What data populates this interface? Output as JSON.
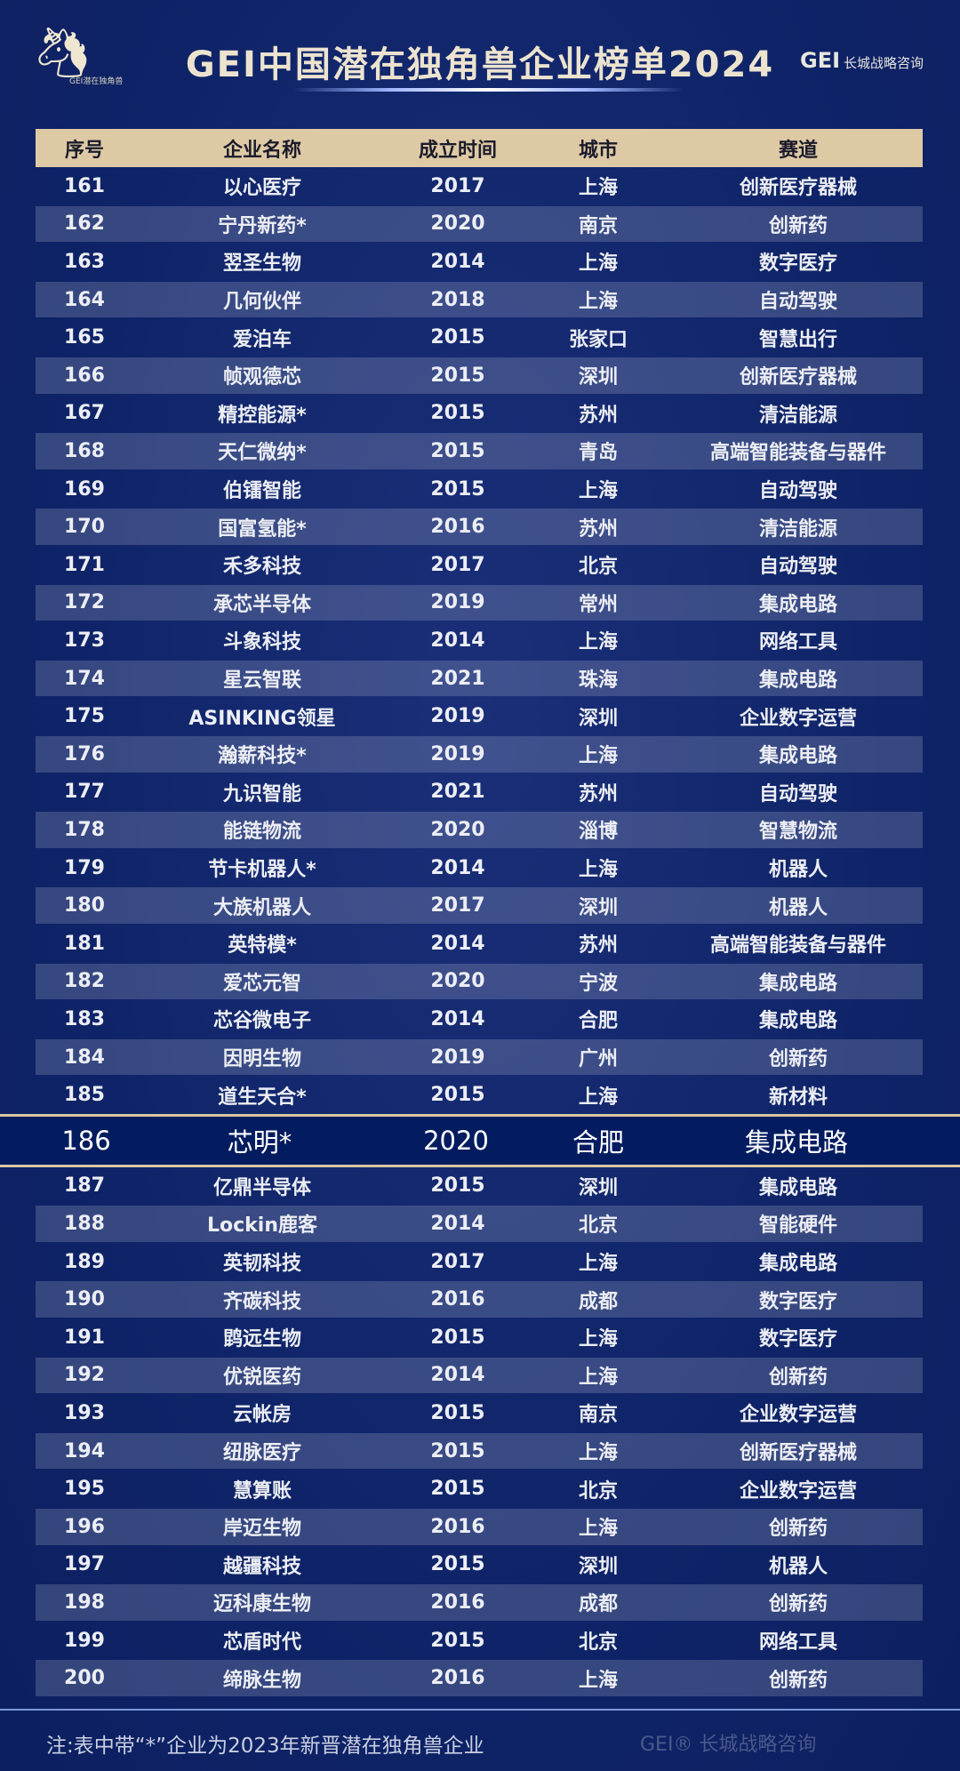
{
  "header": {
    "title": "GEI中国潜在独角兽企业榜单2024",
    "logo_left_caption": "GEI潜在独角兽",
    "logo_right_brand": "GEI",
    "logo_right_name": "长城战略咨询"
  },
  "watermark": "GEI® 长城战略咨询",
  "table": {
    "columns": [
      "序号",
      "企业名称",
      "成立时间",
      "城市",
      "赛道"
    ],
    "rows": [
      [
        "161",
        "以心医疗",
        "2017",
        "上海",
        "创新医疗器械"
      ],
      [
        "162",
        "宁丹新药*",
        "2020",
        "南京",
        "创新药"
      ],
      [
        "163",
        "翌圣生物",
        "2014",
        "上海",
        "数字医疗"
      ],
      [
        "164",
        "几何伙伴",
        "2018",
        "上海",
        "自动驾驶"
      ],
      [
        "165",
        "爱泊车",
        "2015",
        "张家口",
        "智慧出行"
      ],
      [
        "166",
        "帧观德芯",
        "2015",
        "深圳",
        "创新医疗器械"
      ],
      [
        "167",
        "精控能源*",
        "2015",
        "苏州",
        "清洁能源"
      ],
      [
        "168",
        "天仁微纳*",
        "2015",
        "青岛",
        "高端智能装备与器件"
      ],
      [
        "169",
        "伯镭智能",
        "2015",
        "上海",
        "自动驾驶"
      ],
      [
        "170",
        "国富氢能*",
        "2016",
        "苏州",
        "清洁能源"
      ],
      [
        "171",
        "禾多科技",
        "2017",
        "北京",
        "自动驾驶"
      ],
      [
        "172",
        "承芯半导体",
        "2019",
        "常州",
        "集成电路"
      ],
      [
        "173",
        "斗象科技",
        "2014",
        "上海",
        "网络工具"
      ],
      [
        "174",
        "星云智联",
        "2021",
        "珠海",
        "集成电路"
      ],
      [
        "175",
        "ASINKING领星",
        "2019",
        "深圳",
        "企业数字运营"
      ],
      [
        "176",
        "瀚薪科技*",
        "2019",
        "上海",
        "集成电路"
      ],
      [
        "177",
        "九识智能",
        "2021",
        "苏州",
        "自动驾驶"
      ],
      [
        "178",
        "能链物流",
        "2020",
        "淄博",
        "智慧物流"
      ],
      [
        "179",
        "节卡机器人*",
        "2014",
        "上海",
        "机器人"
      ],
      [
        "180",
        "大族机器人",
        "2017",
        "深圳",
        "机器人"
      ],
      [
        "181",
        "英特模*",
        "2014",
        "苏州",
        "高端智能装备与器件"
      ],
      [
        "182",
        "爱芯元智",
        "2020",
        "宁波",
        "集成电路"
      ],
      [
        "183",
        "芯谷微电子",
        "2014",
        "合肥",
        "集成电路"
      ],
      [
        "184",
        "因明生物",
        "2019",
        "广州",
        "创新药"
      ],
      [
        "185",
        "道生天合*",
        "2015",
        "上海",
        "新材料"
      ],
      [
        "186",
        "芯明*",
        "2020",
        "合肥",
        "集成电路"
      ],
      [
        "187",
        "亿鼎半导体",
        "2015",
        "深圳",
        "集成电路"
      ],
      [
        "188",
        "Lockin鹿客",
        "2014",
        "北京",
        "智能硬件"
      ],
      [
        "189",
        "英韧科技",
        "2017",
        "上海",
        "集成电路"
      ],
      [
        "190",
        "齐碳科技",
        "2016",
        "成都",
        "数字医疗"
      ],
      [
        "191",
        "鹍远生物",
        "2015",
        "上海",
        "数字医疗"
      ],
      [
        "192",
        "优锐医药",
        "2014",
        "上海",
        "创新药"
      ],
      [
        "193",
        "云帐房",
        "2015",
        "南京",
        "企业数字运营"
      ],
      [
        "194",
        "纽脉医疗",
        "2015",
        "上海",
        "创新医疗器械"
      ],
      [
        "195",
        "慧算账",
        "2015",
        "北京",
        "企业数字运营"
      ],
      [
        "196",
        "岸迈生物",
        "2016",
        "上海",
        "创新药"
      ],
      [
        "197",
        "越疆科技",
        "2015",
        "深圳",
        "机器人"
      ],
      [
        "198",
        "迈科康生物",
        "2016",
        "成都",
        "创新药"
      ],
      [
        "199",
        "芯盾时代",
        "2015",
        "北京",
        "网络工具"
      ],
      [
        "200",
        "缔脉生物",
        "2016",
        "上海",
        "创新药"
      ]
    ]
  },
  "highlight": {
    "row": [
      "186",
      "芯明*",
      "2020",
      "合肥",
      "集成电路"
    ]
  },
  "footer": {
    "note": "注:表中带“*”企业为2023年新晋潜在独角兽企业"
  },
  "colors": {
    "background": "#0f2468",
    "header_bg": "#ddc9a4",
    "highlight_bg": "#031c60",
    "highlight_border": "#dbc6a0"
  }
}
